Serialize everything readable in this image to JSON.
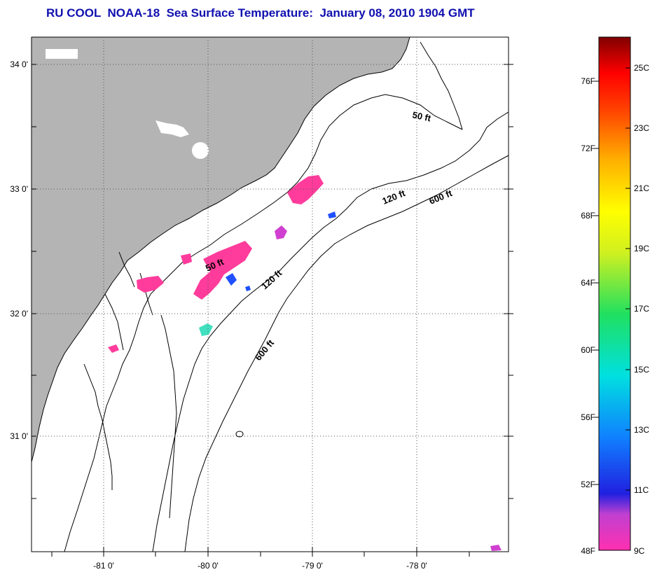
{
  "title": "RU COOL  NOAA-18  Sea Surface Temperature:  January 08, 2010 1904 GMT",
  "lat_ticks": [
    "34 0'",
    "33 0'",
    "32 0'",
    "31 0'"
  ],
  "lon_ticks": [
    "-81 0'",
    "-80 0'",
    "-79 0'",
    "-78 0'"
  ],
  "contours": [
    {
      "label": "50 ft"
    },
    {
      "label": "120 ft"
    },
    {
      "label": "600 ft"
    },
    {
      "label": "50 ft"
    },
    {
      "label": "120 ft"
    },
    {
      "label": "600 ft"
    }
  ],
  "colorbar": {
    "fahrenheit": [
      "76F",
      "72F",
      "68F",
      "64F",
      "60F",
      "56F",
      "52F",
      "48F"
    ],
    "celsius": [
      "25C",
      "23C",
      "21C",
      "19C",
      "17C",
      "15C",
      "13C",
      "11C",
      "9C"
    ]
  },
  "colors": {
    "land": "#b4b4b4",
    "title": "#1010b0",
    "sst_pink": "#ff3c9b",
    "sst_magenta": "#d040d0",
    "sst_blue": "#2050ff",
    "sst_cyan": "#40e0c0"
  }
}
